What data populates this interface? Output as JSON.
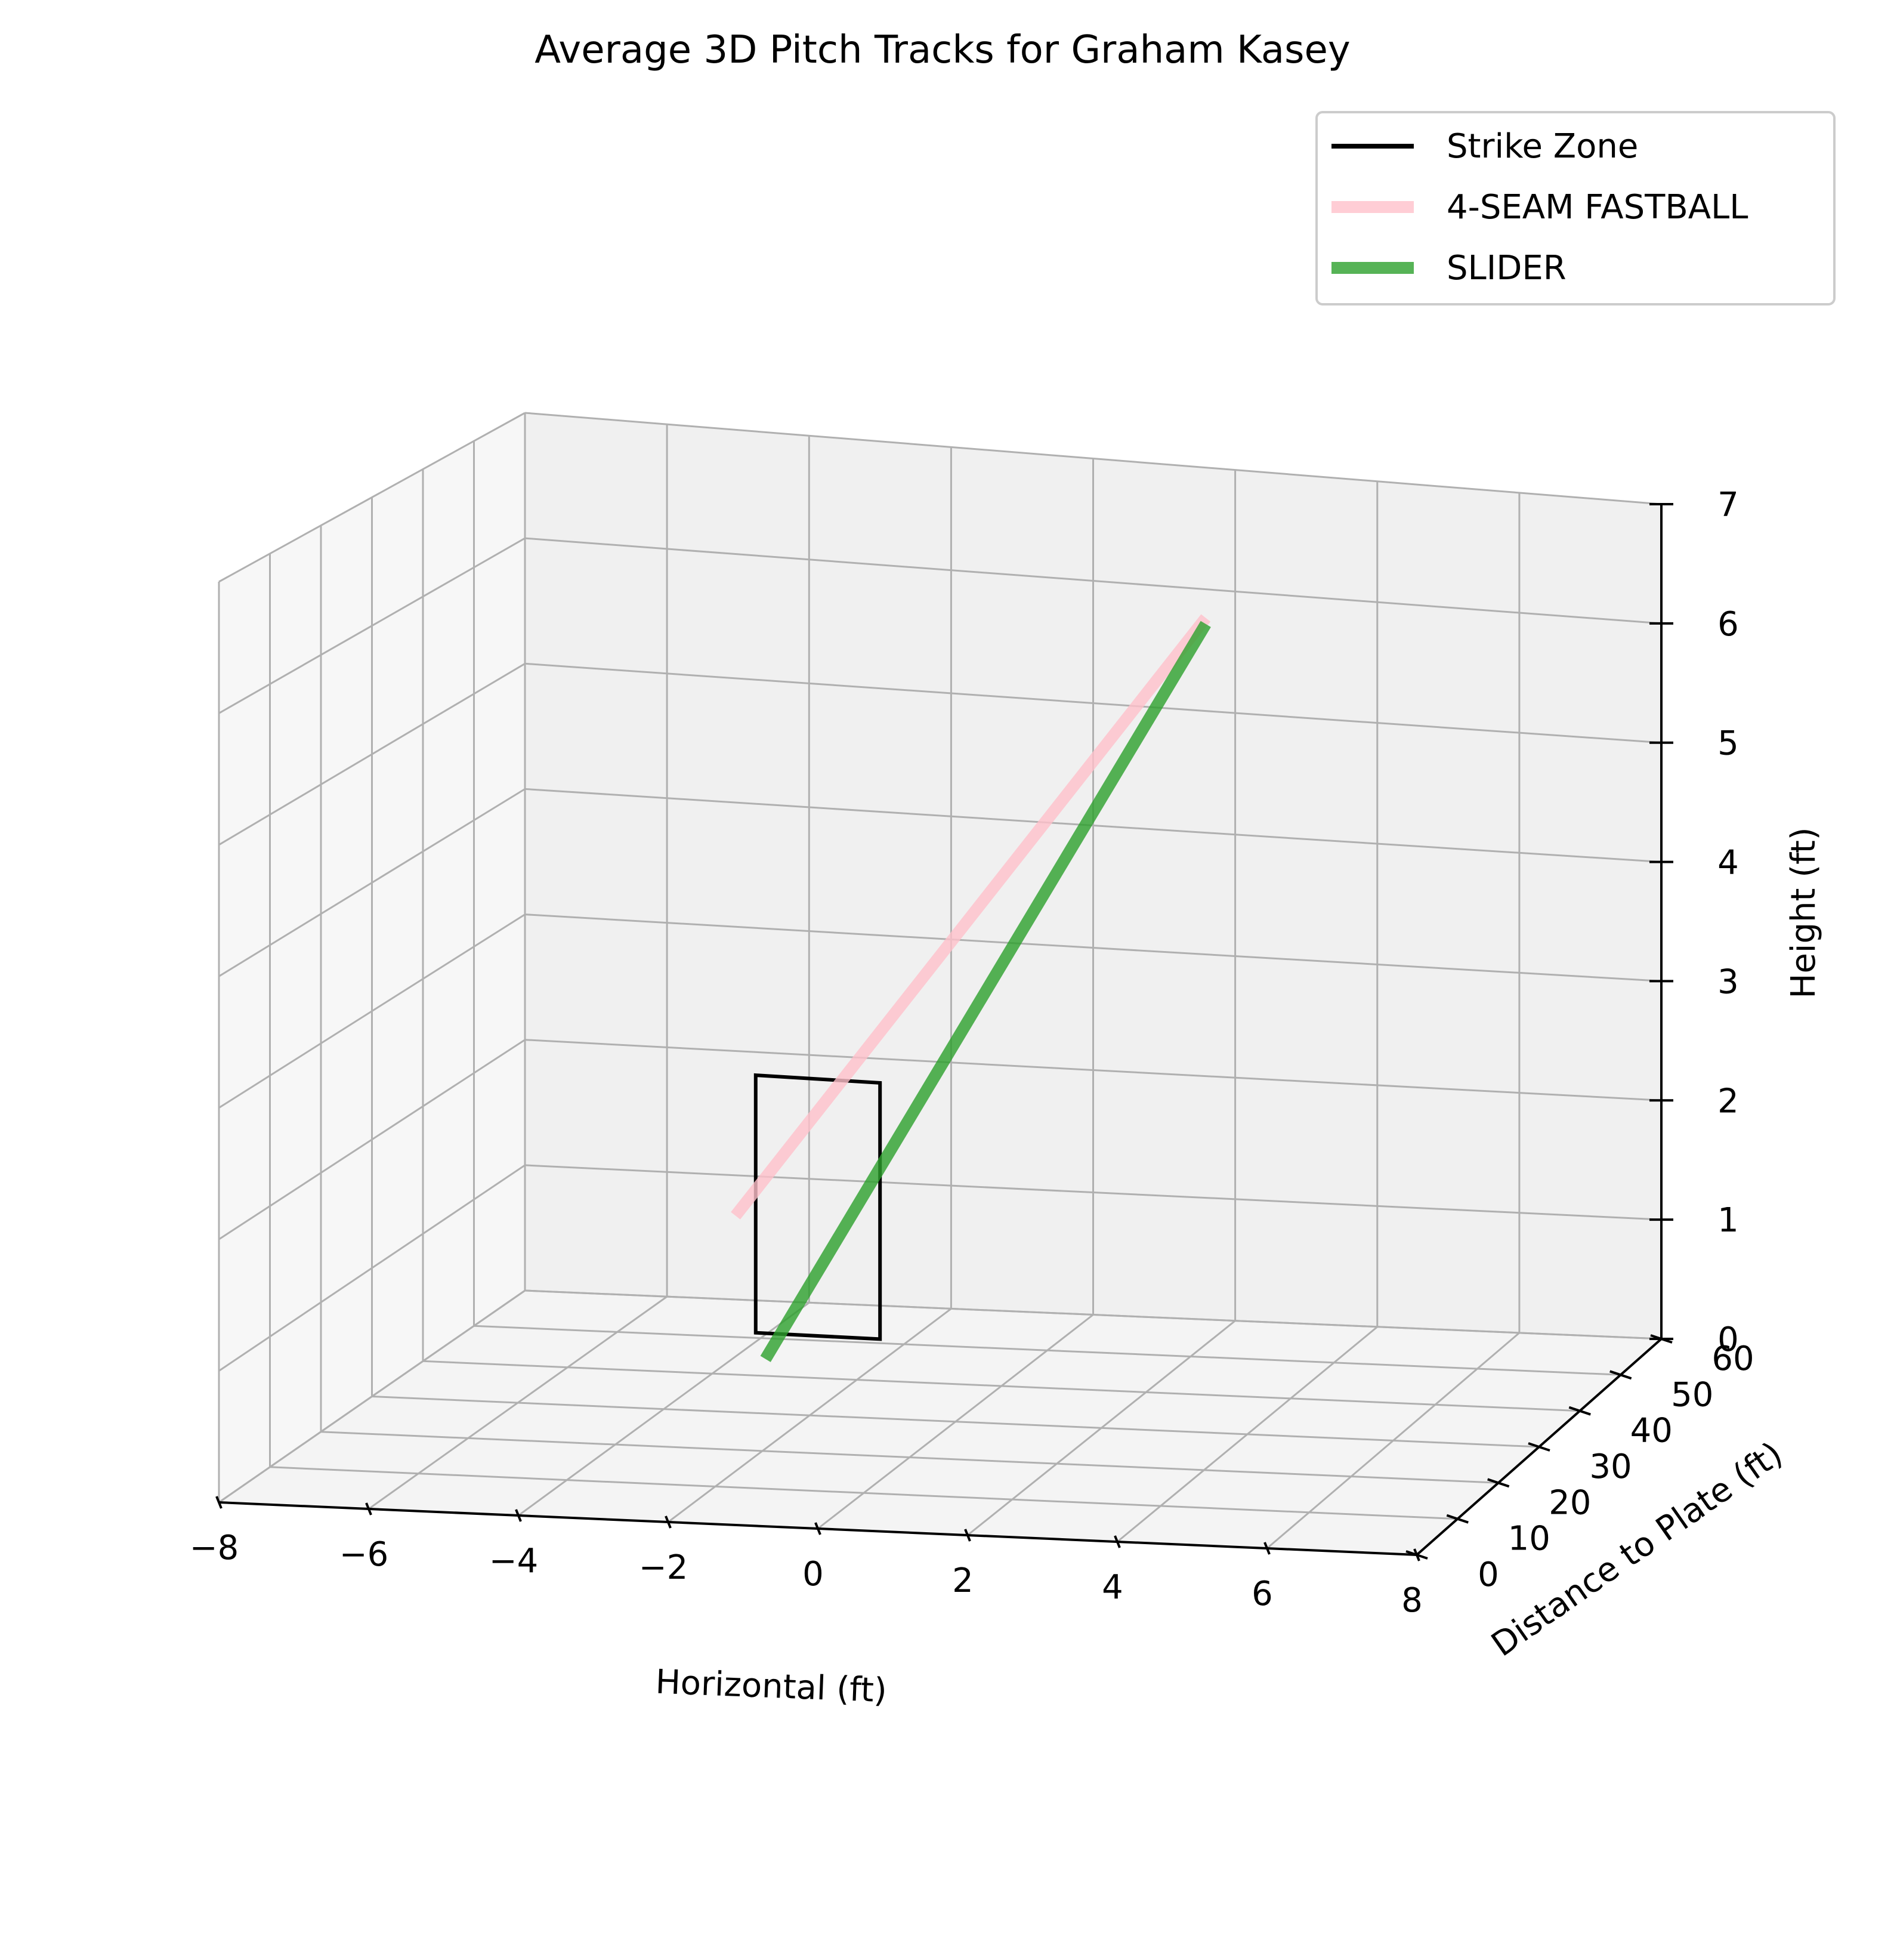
{
  "chart_data": {
    "type": "line",
    "projection": "3d",
    "title": "Average 3D Pitch Tracks for Graham Kasey",
    "xlabel": "Horizontal (ft)",
    "ylabel": "Distance to Plate (ft)",
    "zlabel": "Height (ft)",
    "xlim": [
      -8,
      8
    ],
    "ylim": [
      0,
      60
    ],
    "zlim": [
      0,
      7
    ],
    "xticks": [
      "−8",
      "−6",
      "−4",
      "−2",
      "0",
      "2",
      "4",
      "6",
      "8"
    ],
    "yticks": [
      "0",
      "10",
      "20",
      "30",
      "40",
      "50",
      "60"
    ],
    "zticks": [
      "0",
      "1",
      "2",
      "3",
      "4",
      "5",
      "6",
      "7"
    ],
    "grid": true,
    "legend_position": "top-right",
    "strike_zone": {
      "label": "Strike Zone",
      "color": "#000000",
      "x": [
        -0.83,
        0.83
      ],
      "z": [
        1.5,
        3.5
      ],
      "y": 0
    },
    "series": [
      {
        "name": "4-SEAM FASTBALL",
        "color": "#ffc0cb",
        "points": [
          {
            "x": 1.9,
            "y": 55,
            "z": 5.9
          },
          {
            "x": -1.1,
            "y": 0,
            "z": 2.4
          }
        ]
      },
      {
        "name": "SLIDER",
        "color": "#2ca02c",
        "points": [
          {
            "x": 1.9,
            "y": 55,
            "z": 5.85
          },
          {
            "x": -0.7,
            "y": 0,
            "z": 1.3
          }
        ]
      }
    ]
  }
}
